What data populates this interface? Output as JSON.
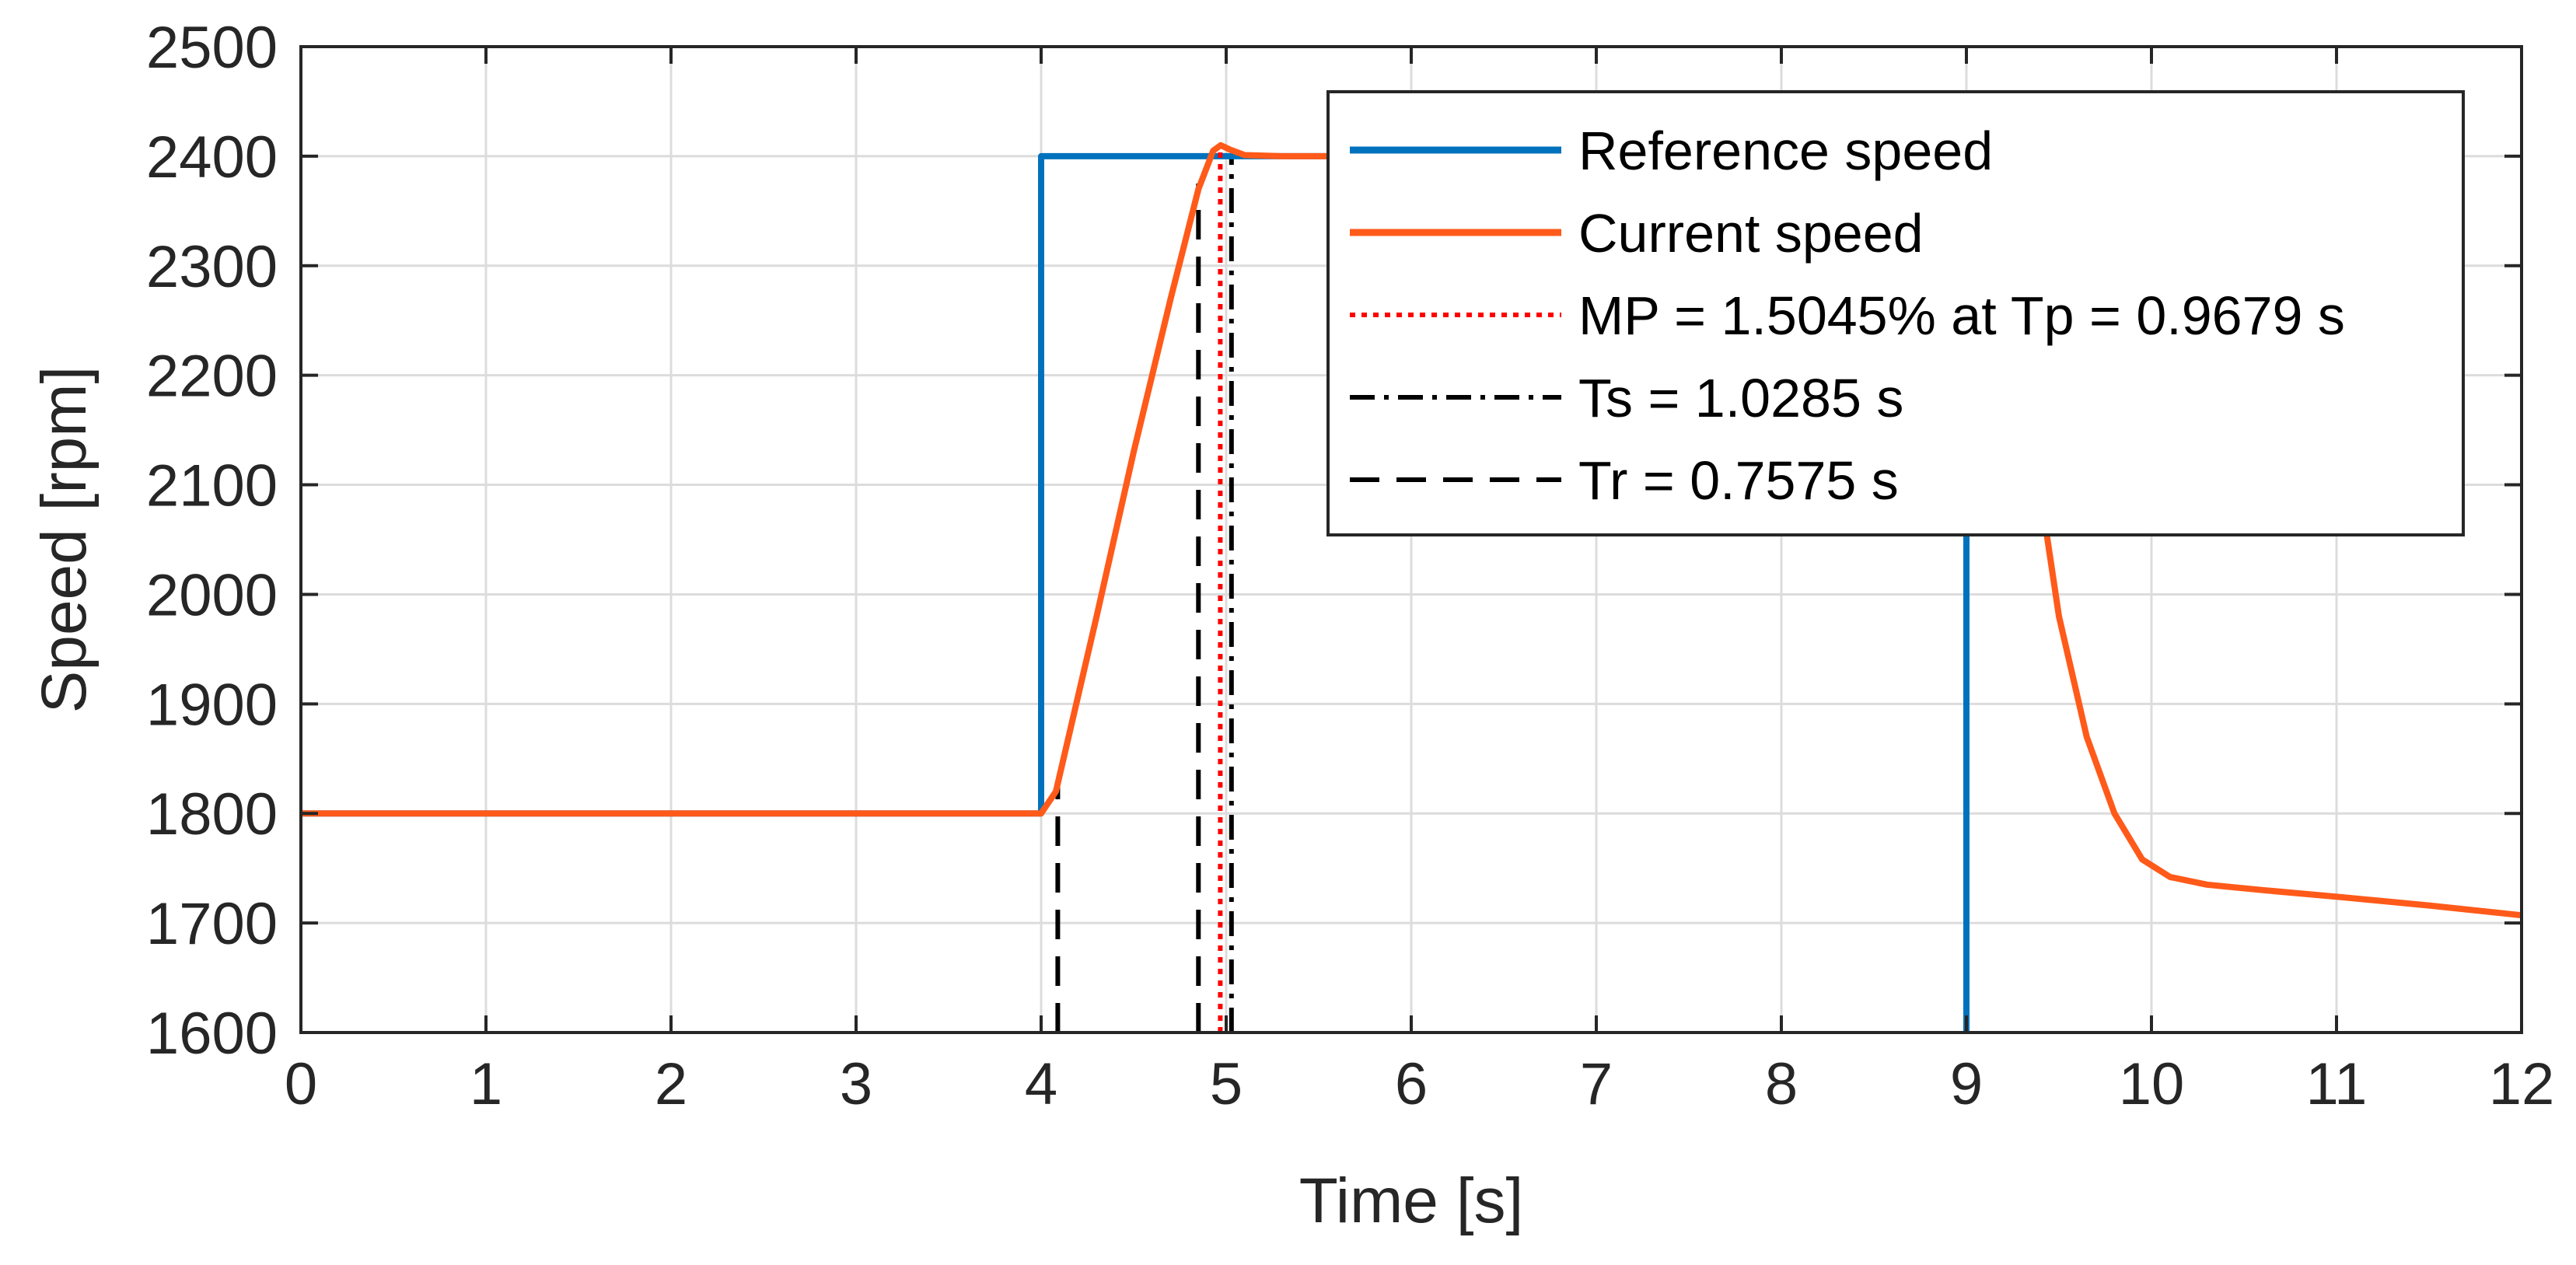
{
  "chart_data": {
    "type": "line",
    "title": "",
    "xlabel": "Time [s]",
    "ylabel": "Speed [rpm]",
    "xlim": [
      0,
      12
    ],
    "ylim": [
      1600,
      2500
    ],
    "xticks": [
      0,
      1,
      2,
      3,
      4,
      5,
      6,
      7,
      8,
      9,
      10,
      11,
      12
    ],
    "yticks": [
      1600,
      1700,
      1800,
      1900,
      2000,
      2100,
      2200,
      2300,
      2400,
      2500
    ],
    "grid": true,
    "legend_position": "top-right",
    "series": [
      {
        "name": "Reference speed",
        "color": "#0072BD",
        "style": "solid",
        "x": [
          0,
          4.0,
          4.0,
          9.0,
          9.0
        ],
        "y": [
          1800,
          1800,
          2400,
          2400,
          1600
        ]
      },
      {
        "name": "Current speed",
        "color": "#FF5A1A",
        "style": "solid",
        "x": [
          0,
          4.0,
          4.08,
          4.3,
          4.5,
          4.7,
          4.85,
          4.93,
          4.97,
          5.02,
          5.1,
          5.3,
          5.6,
          9.0,
          9.2,
          9.35,
          9.5,
          9.65,
          9.8,
          9.95,
          10.1,
          10.3,
          10.6,
          11.0,
          11.5,
          12.0
        ],
        "y": [
          1800,
          1800,
          1820,
          1980,
          2130,
          2270,
          2370,
          2405,
          2410,
          2406,
          2401,
          2400,
          2400,
          2400,
          2300,
          2150,
          1980,
          1870,
          1800,
          1758,
          1742,
          1735,
          1730,
          1724,
          1716,
          1707
        ]
      },
      {
        "name": "MP = 1.5045% at Tp = 0.9679 s",
        "color": "#FF0000",
        "style": "dotted",
        "x": [
          4.9679,
          4.9679
        ],
        "y": [
          1600,
          2410
        ]
      },
      {
        "name": "Ts = 1.0285 s",
        "color": "#000000",
        "style": "dashdot",
        "x": [
          5.0285,
          5.0285
        ],
        "y": [
          1600,
          2400
        ]
      },
      {
        "name": "Tr = 0.7575 s",
        "color": "#000000",
        "style": "dashed",
        "markers": [
          {
            "x": [
              4.09,
              4.09
            ],
            "y": [
              1600,
              1825
            ]
          },
          {
            "x": [
              4.85,
              4.85
            ],
            "y": [
              1600,
              2375
            ]
          }
        ]
      }
    ]
  }
}
